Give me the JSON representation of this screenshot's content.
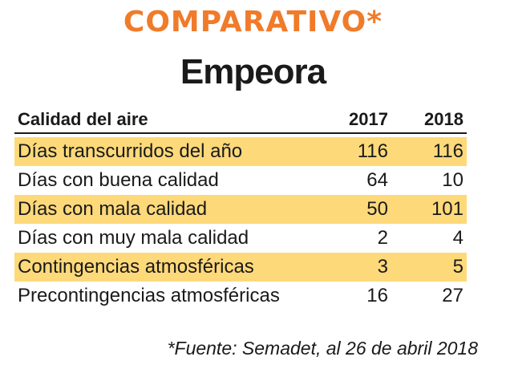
{
  "title": "COMPARATIVO*",
  "subtitle": "Empeora",
  "table": {
    "headers": [
      "Calidad del aire",
      "2017",
      "2018"
    ],
    "rows": [
      {
        "label": "Días transcurridos del año",
        "v2017": "116",
        "v2018": "116"
      },
      {
        "label": "Días con buena calidad",
        "v2017": "64",
        "v2018": "10"
      },
      {
        "label": "Días con mala calidad",
        "v2017": "50",
        "v2018": "101"
      },
      {
        "label": "Días con muy mala calidad",
        "v2017": "2",
        "v2018": "4"
      },
      {
        "label": "Contingencias atmosféricas",
        "v2017": "3",
        "v2018": "5"
      },
      {
        "label": "Precontingencias atmosféricas",
        "v2017": "16",
        "v2018": "27"
      }
    ]
  },
  "source": "*Fuente: Semadet, al 26 de abril 2018",
  "colors": {
    "title": "#f07b2a",
    "row_highlight": "#fdd97a",
    "text": "#1a1a1a"
  }
}
